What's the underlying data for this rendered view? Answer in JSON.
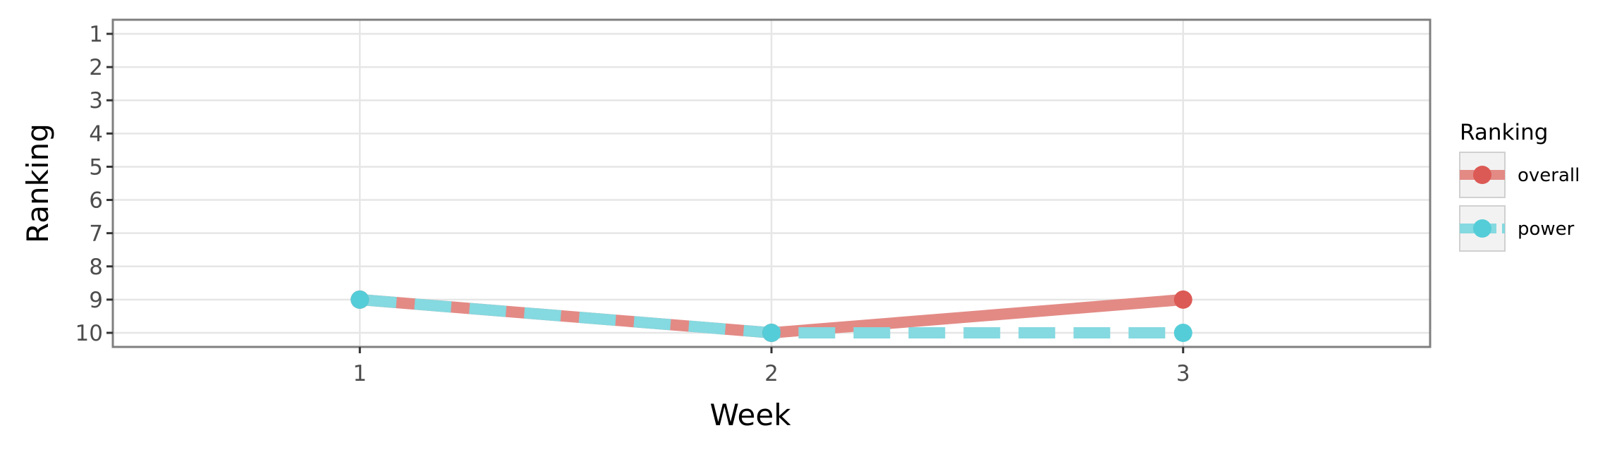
{
  "chart_data": {
    "type": "line",
    "xlabel": "Week",
    "ylabel": "Ranking",
    "x": [
      1,
      2,
      3
    ],
    "x_ticks": [
      "1",
      "2",
      "3"
    ],
    "y_ticks": [
      "1",
      "2",
      "3",
      "4",
      "5",
      "6",
      "7",
      "8",
      "9",
      "10"
    ],
    "xlim": [
      0.4,
      3.6
    ],
    "ylim": [
      1,
      10
    ],
    "y_reversed": true,
    "grid": true,
    "legend": {
      "title": "Ranking",
      "placement": "right",
      "entries": [
        "overall",
        "power"
      ]
    },
    "series": [
      {
        "name": "overall",
        "values": [
          9,
          10,
          9
        ],
        "color": "#dc5a55",
        "line_color": "#e38a85",
        "dash": "solid"
      },
      {
        "name": "power",
        "values": [
          9,
          10,
          10
        ],
        "color": "#55cdd8",
        "line_color": "#85d9e0",
        "dash": "dashed"
      }
    ]
  }
}
